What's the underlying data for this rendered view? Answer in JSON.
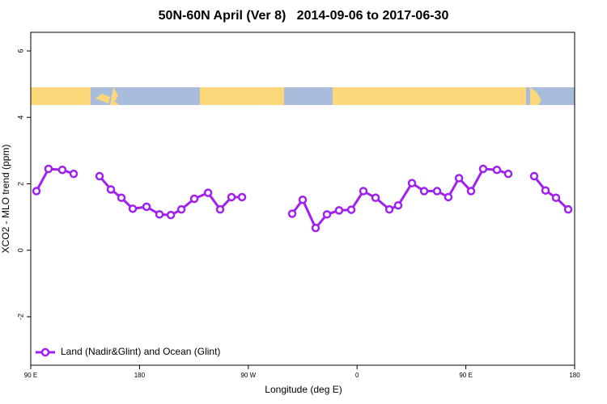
{
  "chart_data": {
    "type": "line",
    "title": "50N-60N April (Ver 8)   2014-09-06 to 2017-06-30",
    "x_label": "Longitude (deg E)",
    "y_label": "XCO2 - MLO trend (ppm)",
    "xlim": [
      90,
      540
    ],
    "ylim": [
      -3.46,
      6.56
    ],
    "xticks": [
      {
        "value": 90,
        "label": "90 E"
      },
      180,
      {
        "value": 270,
        "label": "90 W"
      },
      {
        "value": 360,
        "label": "0"
      },
      {
        "value": 450,
        "label": "90 E"
      },
      {
        "value": 540,
        "label": "180"
      }
    ],
    "yticks": [
      -2,
      0,
      2,
      4,
      6
    ],
    "legend": "bottom-left",
    "x": [
      94.7,
      104.7,
      116.1,
      125.5,
      136,
      146.9,
      156.3,
      165,
      174.4,
      185.8,
      196.5,
      205.9,
      214.6,
      225.3,
      236.7,
      246.7,
      256.1,
      264.8,
      285,
      306.3,
      315,
      325.7,
      335.1,
      345.1,
      355.2,
      365.2,
      375.3,
      386.7,
      394,
      405.4,
      415.5,
      426.2,
      435.5,
      444.3,
      454.3,
      464.3,
      475.7,
      485.1,
      496,
      506.5,
      515.9,
      524.6,
      534.7
    ],
    "series": [
      {
        "name": "Land (Nadir&Glint) and Ocean (Glint)",
        "color": "#a020f0",
        "values": [
          1.78,
          2.45,
          2.42,
          2.3,
          null,
          2.23,
          1.83,
          1.58,
          1.25,
          1.31,
          1.08,
          1.06,
          1.23,
          1.55,
          1.73,
          1.23,
          1.6,
          1.6,
          null,
          1.1,
          1.52,
          0.67,
          1.08,
          1.2,
          1.22,
          1.78,
          1.58,
          1.23,
          1.35,
          2.02,
          1.78,
          1.78,
          1.6,
          2.17,
          1.78,
          2.45,
          2.42,
          2.3,
          null,
          2.23,
          1.8,
          1.58,
          1.23
        ]
      }
    ]
  }
}
